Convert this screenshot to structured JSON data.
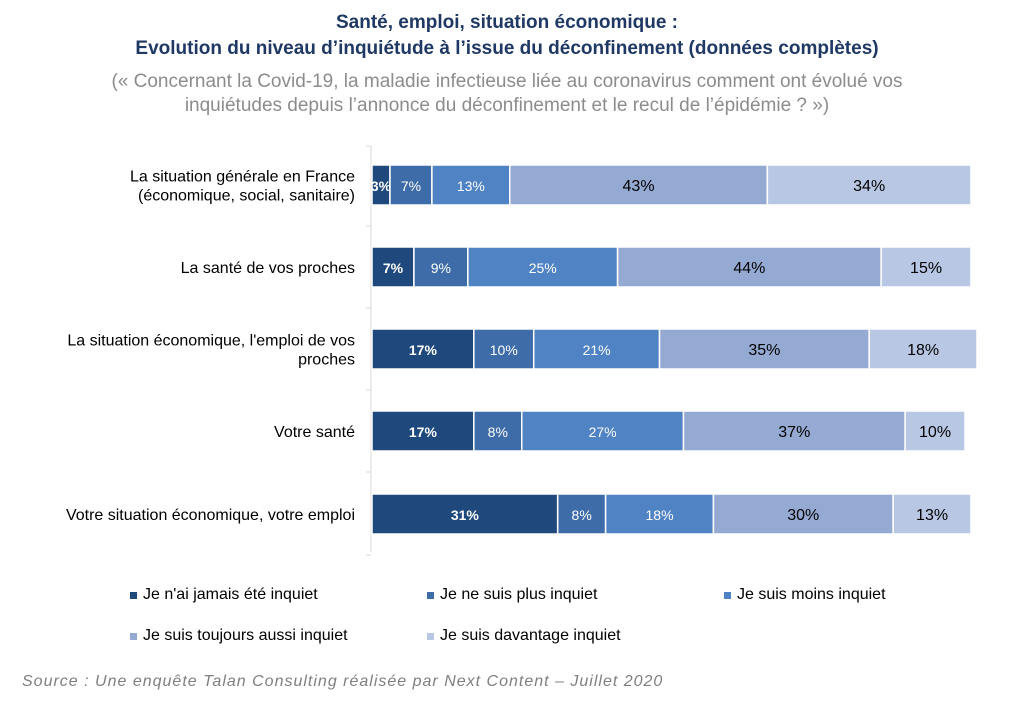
{
  "title_line1": "Santé, emploi, situation économique :",
  "title_line2": "Evolution du niveau d’inquiétude à l’issue du déconfinement (données complètes)",
  "subtitle_line1": "(« Concernant la Covid-19, la maladie infectieuse liée au coronavirus comment ont évolué vos",
  "subtitle_line2": "inquiétudes depuis l’annonce du déconfinement et le recul de l’épidémie ? »)",
  "source": "Source : Une enquête Talan Consulting réalisée par Next Content – Juillet 2020",
  "chart_data": {
    "type": "bar",
    "orientation": "horizontal",
    "stacked": true,
    "categories": [
      [
        "La situation générale en France",
        "(économique, social, sanitaire)"
      ],
      [
        "La santé de vos proches"
      ],
      [
        "La situation économique, l'emploi de vos",
        "proches"
      ],
      [
        "Votre santé"
      ],
      [
        "Votre situation économique, votre emploi"
      ]
    ],
    "series": [
      {
        "name": "Je n'ai jamais été inquiet",
        "color": "#1f497d",
        "label_color": "#ffffff",
        "label_bold": true,
        "values": [
          3,
          7,
          17,
          17,
          31
        ]
      },
      {
        "name": "Je ne suis plus inquiet",
        "color": "#3d6ca8",
        "label_color": "#ffffff",
        "label_bold": false,
        "values": [
          7,
          9,
          10,
          8,
          8
        ]
      },
      {
        "name": "Je suis moins inquiet",
        "color": "#5083c3",
        "label_color": "#ffffff",
        "label_bold": false,
        "values": [
          13,
          25,
          21,
          27,
          18
        ]
      },
      {
        "name": "Je suis toujours aussi inquiet",
        "color": "#95aad3",
        "label_color": "#000000",
        "label_bold": false,
        "values": [
          43,
          44,
          35,
          37,
          30
        ]
      },
      {
        "name": "Je suis davantage inquiet",
        "color": "#b8c7e3",
        "label_color": "#000000",
        "label_bold": false,
        "values": [
          34,
          15,
          18,
          10,
          13
        ]
      }
    ],
    "value_suffix": "%",
    "xlim": [
      0,
      100
    ],
    "grid": false,
    "legend_position": "bottom"
  }
}
